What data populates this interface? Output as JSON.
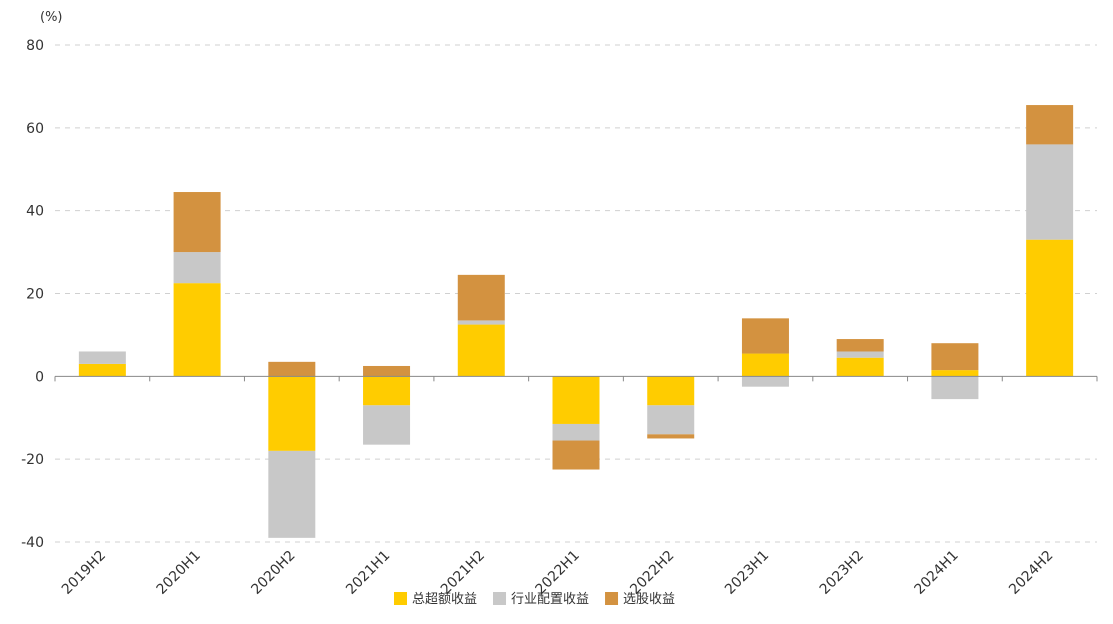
{
  "chart_data": {
    "type": "bar",
    "stacked": true,
    "y_unit": "(%)",
    "categories": [
      "2019H2",
      "2020H1",
      "2020H2",
      "2021H1",
      "2021H2",
      "2022H1",
      "2022H2",
      "2023H1",
      "2023H2",
      "2024H1",
      "2024H2"
    ],
    "series": [
      {
        "name": "总超额收益",
        "color": "#FFCC00",
        "values": [
          3,
          22.5,
          -18,
          -7,
          12.5,
          -11.5,
          -7,
          5.5,
          4.5,
          1.5,
          33
        ]
      },
      {
        "name": "行业配置收益",
        "color": "#C8C8C8",
        "values": [
          3,
          7.5,
          -21,
          -9.5,
          1,
          -4,
          -7,
          -2.5,
          1.5,
          -5.5,
          23
        ]
      },
      {
        "name": "选股收益",
        "color": "#D39240",
        "values": [
          0,
          14.5,
          3.5,
          2.5,
          11,
          -7,
          -1,
          8.5,
          3,
          6.5,
          9.5
        ]
      }
    ],
    "ylim": [
      -40,
      80
    ],
    "yticks": [
      -40,
      -20,
      0,
      20,
      40,
      60,
      80
    ],
    "grid": true,
    "legend_position": "bottom"
  }
}
